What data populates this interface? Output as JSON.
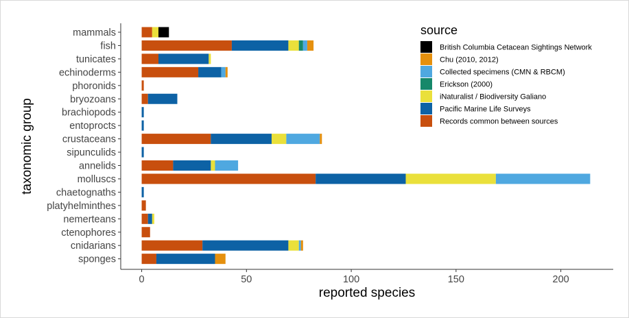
{
  "chart_data": {
    "type": "bar",
    "orientation": "horizontal",
    "stacked": true,
    "xlabel": "reported species",
    "ylabel": "taxonomic group",
    "xlim": [
      -10,
      225
    ],
    "xticks": [
      "0",
      "50",
      "100",
      "150",
      "200"
    ],
    "grid": false,
    "legend_title": "source",
    "legend_position": "top-right",
    "categories": [
      "mammals",
      "fish",
      "tunicates",
      "echinoderms",
      "phoronids",
      "bryozoans",
      "brachiopods",
      "entoprocts",
      "crustaceans",
      "sipunculids",
      "annelids",
      "molluscs",
      "chaetognaths",
      "platyhelminthes",
      "nemerteans",
      "ctenophores",
      "cnidarians",
      "sponges"
    ],
    "series": [
      {
        "name": "Records common between sources",
        "color": "#C84F0E",
        "values": [
          5,
          43,
          8,
          27,
          1,
          3,
          0,
          0,
          33,
          0,
          15,
          83,
          0,
          2,
          3,
          4,
          29,
          7
        ]
      },
      {
        "name": "Pacific Marine Life Surveys",
        "color": "#0D62A5",
        "values": [
          0,
          27,
          24,
          11,
          0,
          14,
          1,
          1,
          29,
          1,
          18,
          43,
          1,
          0,
          2,
          0,
          41,
          28
        ]
      },
      {
        "name": "iNaturalist / Biodiversity Galiano",
        "color": "#EAE03B",
        "values": [
          3,
          5,
          1,
          0,
          0,
          0,
          0,
          0,
          7,
          0,
          2,
          43,
          0,
          0,
          1,
          0,
          5,
          0
        ]
      },
      {
        "name": "Erickson (2000)",
        "color": "#16886A",
        "values": [
          0,
          2,
          0,
          0,
          0,
          0,
          0,
          0,
          0,
          0,
          0,
          0,
          0,
          0,
          0,
          0,
          0,
          0
        ]
      },
      {
        "name": "Collected specimens (CMN & RBCM)",
        "color": "#4FA8E0",
        "values": [
          0,
          2,
          0,
          2,
          0,
          0,
          0,
          0,
          16,
          0,
          11,
          45,
          0,
          0,
          0,
          0,
          1,
          0
        ]
      },
      {
        "name": "Chu (2010, 2012)",
        "color": "#E5900E",
        "values": [
          0,
          3,
          0,
          1,
          0,
          0,
          0,
          0,
          1,
          0,
          0,
          0,
          0,
          0,
          0,
          0,
          1,
          5
        ]
      },
      {
        "name": "British Columbia Cetacean Sightings Network",
        "color": "#000000",
        "values": [
          5,
          0,
          0,
          0,
          0,
          0,
          0,
          0,
          0,
          0,
          0,
          0,
          0,
          0,
          0,
          0,
          0,
          0
        ]
      }
    ],
    "legend_order": [
      "British Columbia Cetacean Sightings Network",
      "Chu (2010, 2012)",
      "Collected specimens (CMN & RBCM)",
      "Erickson (2000)",
      "iNaturalist / Biodiversity Galiano",
      "Pacific Marine Life Surveys",
      "Records common between sources"
    ]
  }
}
